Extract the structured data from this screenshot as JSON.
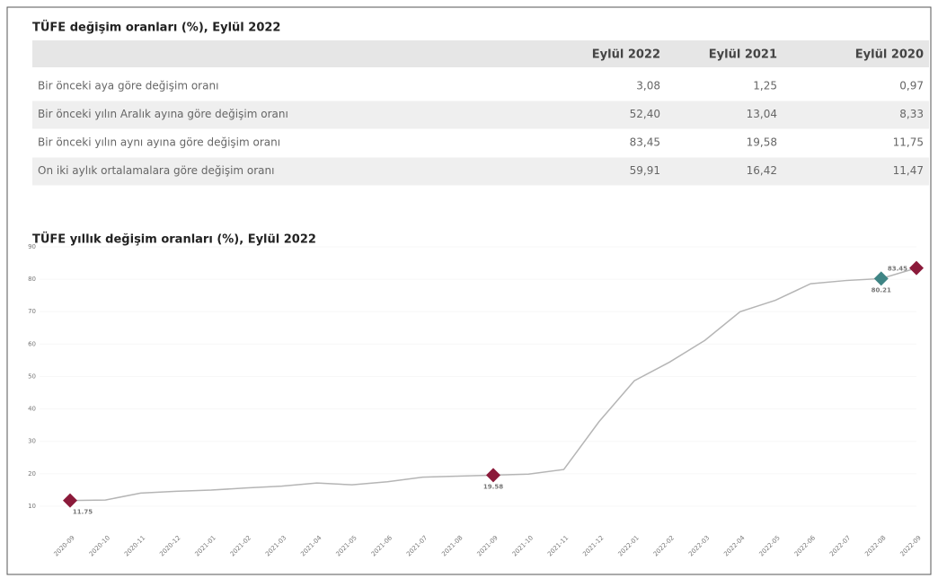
{
  "table": {
    "title": "TÜFE değişim oranları (%), Eylül 2022",
    "columns": [
      "Eylül 2022",
      "Eylül 2021",
      "Eylül 2020"
    ],
    "rows": [
      [
        "Bir önceki aya göre değişim oranı",
        "3,08",
        "1,25",
        "0,97"
      ],
      [
        "Bir önceki yılın Aralık ayına göre değişim oranı",
        "52,40",
        "13,04",
        "8,33"
      ],
      [
        "Bir önceki yılın aynı ayına göre değişim oranı",
        "83,45",
        "19,58",
        "11,75"
      ],
      [
        "On iki aylık ortalamalara göre değişim oranı",
        "59,91",
        "16,42",
        "11,47"
      ]
    ]
  },
  "chart_data": {
    "type": "line",
    "title": "TÜFE yıllık değişim oranları (%), Eylül 2022",
    "categories": [
      "2020-09",
      "2020-10",
      "2020-11",
      "2020-12",
      "2021-01",
      "2021-02",
      "2021-03",
      "2021-04",
      "2021-05",
      "2021-06",
      "2021-07",
      "2021-08",
      "2021-09",
      "2021-10",
      "2021-11",
      "2021-12",
      "2022-01",
      "2022-02",
      "2022-03",
      "2022-04",
      "2022-05",
      "2022-06",
      "2022-07",
      "2022-08",
      "2022-09"
    ],
    "values": [
      11.75,
      11.89,
      14.03,
      14.6,
      14.97,
      15.61,
      16.19,
      17.14,
      16.59,
      17.53,
      18.95,
      19.25,
      19.58,
      19.89,
      21.31,
      36.08,
      48.69,
      54.44,
      61.14,
      69.97,
      73.5,
      78.62,
      79.6,
      80.21,
      83.45
    ],
    "value_labels": [
      "11.75",
      null,
      null,
      null,
      null,
      null,
      null,
      null,
      null,
      null,
      null,
      null,
      "19.58",
      null,
      null,
      null,
      null,
      null,
      null,
      null,
      null,
      null,
      null,
      "80.21",
      "83.45"
    ],
    "marker_colors": [
      "#8b1a3a",
      null,
      null,
      null,
      null,
      null,
      null,
      null,
      null,
      null,
      null,
      null,
      "#8b1a3a",
      null,
      null,
      null,
      null,
      null,
      null,
      null,
      null,
      null,
      null,
      "#3f8585",
      "#8b1a3a"
    ],
    "color": "#b5b5b5",
    "ylim": [
      5,
      90
    ],
    "yticks": [
      10,
      20,
      30,
      40,
      50,
      60,
      70,
      80,
      90
    ]
  }
}
